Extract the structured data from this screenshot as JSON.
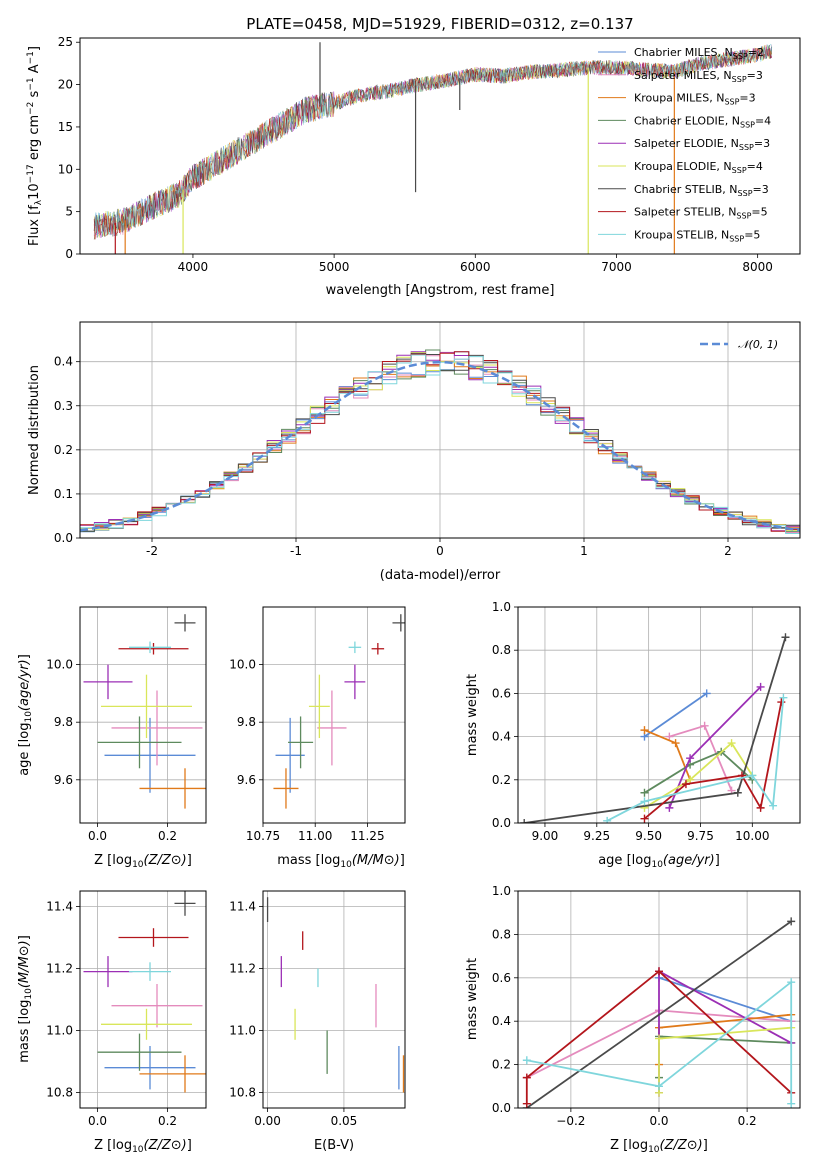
{
  "colors": {
    "Chabrier MILES": "#5b8bd6",
    "Salpeter MILES": "#e48bbd",
    "Kroupa MILES": "#e07a1a",
    "Chabrier ELODIE": "#5e8a5e",
    "Salpeter ELODIE": "#9b2fb5",
    "Kroupa ELODIE": "#d9e65a",
    "Chabrier STELIB": "#4a4a4a",
    "Salpeter STELIB": "#b3161c",
    "Kroupa STELIB": "#7fd6dc",
    "normal": "#5b8bd6"
  },
  "chart_data": [
    {
      "id": "spectrum",
      "type": "line",
      "title": "PLATE=0458, MJD=51929, FIBERID=0312, z=0.137",
      "xlabel": "wavelength [Angstrom, rest frame]",
      "ylabel": "Flux [f_λ10^-17 erg cm^-2 s^-1 A^-1]",
      "xlim": [
        3200,
        8300
      ],
      "ylim": [
        0,
        25.5
      ],
      "xticks": [
        4000,
        5000,
        6000,
        7000,
        8000
      ],
      "yticks": [
        0,
        5,
        10,
        15,
        20,
        25
      ],
      "legend_placement": "top-right",
      "legend": [
        {
          "base": "Chabrier MILES, N",
          "sub": "SSP",
          "tail": "=2"
        },
        {
          "base": "Salpeter MILES, N",
          "sub": "SSP",
          "tail": "=3"
        },
        {
          "base": "Kroupa MILES, N",
          "sub": "SSP",
          "tail": "=3"
        },
        {
          "base": "Chabrier ELODIE, N",
          "sub": "SSP",
          "tail": "=4"
        },
        {
          "base": "Salpeter ELODIE, N",
          "sub": "SSP",
          "tail": "=3"
        },
        {
          "base": "Kroupa ELODIE, N",
          "sub": "SSP",
          "tail": "=4"
        },
        {
          "base": "Chabrier STELIB, N",
          "sub": "SSP",
          "tail": "=3"
        },
        {
          "base": "Salpeter STELIB, N",
          "sub": "SSP",
          "tail": "=5"
        },
        {
          "base": "Kroupa STELIB, N",
          "sub": "SSP",
          "tail": "=5"
        }
      ],
      "continuum": [
        [
          3300,
          3.3
        ],
        [
          3500,
          3.8
        ],
        [
          3700,
          5.5
        ],
        [
          3900,
          7
        ],
        [
          4000,
          9
        ],
        [
          4200,
          11
        ],
        [
          4400,
          13
        ],
        [
          4600,
          15
        ],
        [
          4800,
          17
        ],
        [
          5000,
          17.8
        ],
        [
          5200,
          18.8
        ],
        [
          5400,
          19.3
        ],
        [
          5600,
          20
        ],
        [
          5800,
          20.5
        ],
        [
          6000,
          21.2
        ],
        [
          6200,
          21
        ],
        [
          6400,
          21.5
        ],
        [
          6600,
          21.7
        ],
        [
          6800,
          22
        ],
        [
          7000,
          22
        ],
        [
          7200,
          21.8
        ],
        [
          7400,
          21.5
        ],
        [
          7600,
          22.5
        ],
        [
          7800,
          23
        ],
        [
          8000,
          23.5
        ],
        [
          8100,
          24
        ]
      ],
      "spikes": [
        [
          3450,
          0,
          "Salpeter STELIB"
        ],
        [
          3520,
          0,
          "Kroupa MILES"
        ],
        [
          3930,
          0,
          "Kroupa ELODIE"
        ],
        [
          4900,
          25,
          "Chabrier STELIB"
        ],
        [
          5577,
          7.3,
          "Chabrier STELIB"
        ],
        [
          5890,
          17,
          "Chabrier STELIB"
        ],
        [
          6800,
          0,
          "Kroupa ELODIE"
        ],
        [
          7410,
          0,
          "Kroupa MILES"
        ]
      ]
    },
    {
      "id": "residuals",
      "type": "histogram",
      "xlabel": "(data-model)/error",
      "ylabel": "Normed distribution",
      "xlim": [
        -2.5,
        2.5
      ],
      "ylim": [
        0,
        0.49
      ],
      "xticks": [
        -2,
        -1,
        0,
        1,
        2
      ],
      "yticks": [
        0.0,
        0.1,
        0.2,
        0.3,
        0.4
      ],
      "grid": true,
      "legend": "𝒩(0, 1)",
      "legend_placement": "top-right",
      "bin_width": 0.1
    },
    {
      "id": "age_vs_Z",
      "type": "errorbar",
      "xlabel": "Z [log10(Z/Z⊙)]",
      "ylabel": "age  [log10(age/yr)]",
      "xlim": [
        -0.05,
        0.31
      ],
      "ylim": [
        9.45,
        10.2
      ],
      "xticks": [
        0.0,
        0.2
      ],
      "yticks": [
        9.6,
        9.8,
        10.0
      ],
      "grid": true,
      "points": [
        {
          "model": "Chabrier MILES",
          "x": 0.15,
          "xerr": 0.13,
          "y": 9.685,
          "yerr": 0.13
        },
        {
          "model": "Salpeter MILES",
          "x": 0.17,
          "xerr": 0.13,
          "y": 9.78,
          "yerr": 0.13
        },
        {
          "model": "Kroupa MILES",
          "x": 0.25,
          "xerr": 0.13,
          "y": 9.57,
          "yerr": 0.07
        },
        {
          "model": "Chabrier ELODIE",
          "x": 0.12,
          "xerr": 0.12,
          "y": 9.73,
          "yerr": 0.09
        },
        {
          "model": "Salpeter ELODIE",
          "x": 0.03,
          "xerr": 0.07,
          "y": 9.94,
          "yerr": 0.06
        },
        {
          "model": "Kroupa ELODIE",
          "x": 0.14,
          "xerr": 0.13,
          "y": 9.855,
          "yerr": 0.11
        },
        {
          "model": "Chabrier STELIB",
          "x": 0.25,
          "xerr": 0.03,
          "y": 10.145,
          "yerr": 0.03
        },
        {
          "model": "Salpeter STELIB",
          "x": 0.16,
          "xerr": 0.1,
          "y": 10.055,
          "yerr": 0.02
        },
        {
          "model": "Kroupa STELIB",
          "x": 0.15,
          "xerr": 0.06,
          "y": 10.06,
          "yerr": 0.02
        }
      ]
    },
    {
      "id": "age_vs_mass",
      "type": "errorbar",
      "xlabel": "mass [log10(M/M⊙)]",
      "ylabel": "",
      "xlim": [
        10.75,
        11.43
      ],
      "ylim": [
        9.45,
        10.2
      ],
      "xticks": [
        10.75,
        11.0,
        11.25
      ],
      "yticks": [
        9.6,
        9.8,
        10.0
      ],
      "grid": true,
      "points": [
        {
          "model": "Chabrier MILES",
          "x": 10.88,
          "xerr": 0.07,
          "y": 9.685,
          "yerr": 0.13
        },
        {
          "model": "Salpeter MILES",
          "x": 11.08,
          "xerr": 0.07,
          "y": 9.78,
          "yerr": 0.13
        },
        {
          "model": "Kroupa MILES",
          "x": 10.86,
          "xerr": 0.06,
          "y": 9.57,
          "yerr": 0.07
        },
        {
          "model": "Chabrier ELODIE",
          "x": 10.93,
          "xerr": 0.06,
          "y": 9.73,
          "yerr": 0.09
        },
        {
          "model": "Salpeter ELODIE",
          "x": 11.19,
          "xerr": 0.05,
          "y": 9.94,
          "yerr": 0.06
        },
        {
          "model": "Kroupa ELODIE",
          "x": 11.02,
          "xerr": 0.05,
          "y": 9.855,
          "yerr": 0.11
        },
        {
          "model": "Chabrier STELIB",
          "x": 11.41,
          "xerr": 0.04,
          "y": 10.145,
          "yerr": 0.03
        },
        {
          "model": "Salpeter STELIB",
          "x": 11.3,
          "xerr": 0.03,
          "y": 10.055,
          "yerr": 0.02
        },
        {
          "model": "Kroupa STELIB",
          "x": 11.19,
          "xerr": 0.03,
          "y": 10.06,
          "yerr": 0.02
        }
      ]
    },
    {
      "id": "weight_vs_age",
      "type": "line",
      "xlabel": "age  [log10(age/yr)]",
      "ylabel": "mass weight",
      "xlim": [
        8.87,
        10.23
      ],
      "ylim": [
        0,
        1.0
      ],
      "xticks": [
        9.0,
        9.25,
        9.5,
        9.75,
        10.0
      ],
      "yticks": [
        0.0,
        0.2,
        0.4,
        0.6,
        0.8,
        1.0
      ],
      "grid": true,
      "series": [
        {
          "model": "Chabrier MILES",
          "points": [
            [
              9.48,
              0.4
            ],
            [
              9.78,
              0.6
            ]
          ]
        },
        {
          "model": "Salpeter MILES",
          "points": [
            [
              9.6,
              0.4
            ],
            [
              9.77,
              0.45
            ],
            [
              9.9,
              0.15
            ]
          ]
        },
        {
          "model": "Kroupa MILES",
          "points": [
            [
              9.48,
              0.43
            ],
            [
              9.63,
              0.37
            ],
            [
              9.7,
              0.2
            ]
          ]
        },
        {
          "model": "Chabrier ELODIE",
          "points": [
            [
              9.48,
              0.14
            ],
            [
              9.7,
              0.27
            ],
            [
              9.85,
              0.33
            ],
            [
              10.0,
              0.2
            ]
          ]
        },
        {
          "model": "Salpeter ELODIE",
          "points": [
            [
              9.6,
              0.07
            ],
            [
              9.7,
              0.3
            ],
            [
              10.04,
              0.63
            ]
          ]
        },
        {
          "model": "Kroupa ELODIE",
          "points": [
            [
              9.48,
              0.07
            ],
            [
              9.7,
              0.2
            ],
            [
              9.9,
              0.37
            ],
            [
              10.0,
              0.22
            ]
          ]
        },
        {
          "model": "Chabrier STELIB",
          "points": [
            [
              8.9,
              0.0
            ],
            [
              9.93,
              0.14
            ],
            [
              10.16,
              0.86
            ]
          ]
        },
        {
          "model": "Salpeter STELIB",
          "points": [
            [
              9.48,
              0.02
            ],
            [
              9.68,
              0.18
            ],
            [
              9.95,
              0.22
            ],
            [
              10.04,
              0.07
            ],
            [
              10.14,
              0.56
            ]
          ]
        },
        {
          "model": "Kroupa STELIB",
          "points": [
            [
              9.3,
              0.01
            ],
            [
              9.48,
              0.1
            ],
            [
              10.0,
              0.22
            ],
            [
              10.1,
              0.08
            ],
            [
              10.15,
              0.58
            ]
          ]
        }
      ]
    },
    {
      "id": "mass_vs_Z",
      "type": "errorbar",
      "xlabel": "Z [log10(Z/Z⊙)]",
      "ylabel": "mass [log10(M/M⊙)]",
      "xlim": [
        -0.05,
        0.31
      ],
      "ylim": [
        10.75,
        11.45
      ],
      "xticks": [
        0.0,
        0.2
      ],
      "yticks": [
        10.8,
        11.0,
        11.2,
        11.4
      ],
      "grid": true,
      "points": [
        {
          "model": "Chabrier MILES",
          "x": 0.15,
          "xerr": 0.13,
          "y": 10.88,
          "yerr": 0.07
        },
        {
          "model": "Salpeter MILES",
          "x": 0.17,
          "xerr": 0.13,
          "y": 11.08,
          "yerr": 0.07
        },
        {
          "model": "Kroupa MILES",
          "x": 0.25,
          "xerr": 0.13,
          "y": 10.86,
          "yerr": 0.06
        },
        {
          "model": "Chabrier ELODIE",
          "x": 0.12,
          "xerr": 0.12,
          "y": 10.93,
          "yerr": 0.06
        },
        {
          "model": "Salpeter ELODIE",
          "x": 0.03,
          "xerr": 0.07,
          "y": 11.19,
          "yerr": 0.05
        },
        {
          "model": "Kroupa ELODIE",
          "x": 0.14,
          "xerr": 0.13,
          "y": 11.02,
          "yerr": 0.05
        },
        {
          "model": "Chabrier STELIB",
          "x": 0.25,
          "xerr": 0.03,
          "y": 11.41,
          "yerr": 0.04
        },
        {
          "model": "Salpeter STELIB",
          "x": 0.16,
          "xerr": 0.1,
          "y": 11.3,
          "yerr": 0.03
        },
        {
          "model": "Kroupa STELIB",
          "x": 0.15,
          "xerr": 0.06,
          "y": 11.19,
          "yerr": 0.03
        }
      ]
    },
    {
      "id": "mass_vs_ebv",
      "type": "errorbar",
      "xlabel": "E(B-V)",
      "ylabel": "",
      "xlim": [
        -0.003,
        0.09
      ],
      "ylim": [
        10.75,
        11.45
      ],
      "xticks": [
        0.0,
        0.05
      ],
      "yticks": [
        10.8,
        11.0,
        11.2,
        11.4
      ],
      "grid": true,
      "points": [
        {
          "model": "Chabrier MILES",
          "x": 0.086,
          "xerr": 0,
          "y": 10.88,
          "yerr": 0.07
        },
        {
          "model": "Salpeter MILES",
          "x": 0.071,
          "xerr": 0,
          "y": 11.08,
          "yerr": 0.07
        },
        {
          "model": "Kroupa MILES",
          "x": 0.089,
          "xerr": 0,
          "y": 10.86,
          "yerr": 0.06
        },
        {
          "model": "Chabrier ELODIE",
          "x": 0.039,
          "xerr": 0,
          "y": 10.93,
          "yerr": 0.07
        },
        {
          "model": "Salpeter ELODIE",
          "x": 0.009,
          "xerr": 0,
          "y": 11.19,
          "yerr": 0.05
        },
        {
          "model": "Kroupa ELODIE",
          "x": 0.018,
          "xerr": 0,
          "y": 11.02,
          "yerr": 0.05
        },
        {
          "model": "Chabrier STELIB",
          "x": 0.0,
          "xerr": 0,
          "y": 11.39,
          "yerr": 0.04
        },
        {
          "model": "Salpeter STELIB",
          "x": 0.023,
          "xerr": 0,
          "y": 11.29,
          "yerr": 0.03
        },
        {
          "model": "Kroupa STELIB",
          "x": 0.033,
          "xerr": 0,
          "y": 11.17,
          "yerr": 0.03
        }
      ]
    },
    {
      "id": "weight_vs_Z",
      "type": "line",
      "xlabel": "Z [log10(Z/Z⊙)]",
      "ylabel": "mass weight",
      "xlim": [
        -0.32,
        0.32
      ],
      "ylim": [
        0,
        1.0
      ],
      "xticks": [
        -0.2,
        0.0,
        0.2
      ],
      "yticks": [
        0.0,
        0.2,
        0.4,
        0.6,
        0.8,
        1.0
      ],
      "grid": true,
      "series": [
        {
          "model": "Chabrier MILES",
          "points": [
            [
              0.0,
              0.6
            ],
            [
              0.3,
              0.4
            ]
          ]
        },
        {
          "model": "Salpeter MILES",
          "points": [
            [
              -0.3,
              0.14
            ],
            [
              0.0,
              0.45
            ],
            [
              0.3,
              0.4
            ]
          ]
        },
        {
          "model": "Kroupa MILES",
          "points": [
            [
              0.0,
              0.2
            ],
            [
              0.0,
              0.37
            ],
            [
              0.3,
              0.43
            ]
          ]
        },
        {
          "model": "Chabrier ELODIE",
          "points": [
            [
              0.0,
              0.14
            ],
            [
              0.0,
              0.33
            ],
            [
              0.3,
              0.3
            ]
          ]
        },
        {
          "model": "Salpeter ELODIE",
          "points": [
            [
              0.0,
              0.07
            ],
            [
              0.0,
              0.63
            ],
            [
              0.3,
              0.3
            ]
          ]
        },
        {
          "model": "Kroupa ELODIE",
          "points": [
            [
              0.0,
              0.07
            ],
            [
              0.0,
              0.32
            ],
            [
              0.3,
              0.37
            ]
          ]
        },
        {
          "model": "Chabrier STELIB",
          "points": [
            [
              -0.3,
              0.0
            ],
            [
              0.3,
              0.86
            ]
          ]
        },
        {
          "model": "Salpeter STELIB",
          "points": [
            [
              -0.3,
              0.02
            ],
            [
              -0.3,
              0.14
            ],
            [
              0.0,
              0.63
            ],
            [
              0.3,
              0.07
            ]
          ]
        },
        {
          "model": "Kroupa STELIB",
          "points": [
            [
              -0.3,
              0.22
            ],
            [
              0.0,
              0.1
            ],
            [
              0.3,
              0.58
            ],
            [
              0.3,
              0.02
            ]
          ]
        }
      ]
    }
  ]
}
